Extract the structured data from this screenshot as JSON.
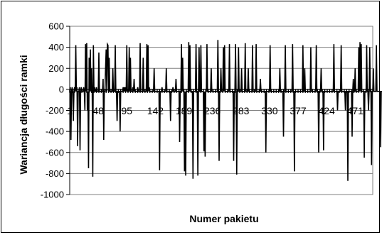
{
  "chart_data": {
    "type": "line",
    "title": "",
    "xlabel": "Numer pakietu",
    "ylabel": "Wariancja długości ramki",
    "ylim": [
      -1000,
      600
    ],
    "y_ticks": [
      600,
      400,
      200,
      0,
      -200,
      -400,
      -600,
      -800,
      -1000
    ],
    "y_tick_labels": [
      "600",
      "400",
      "200",
      "0",
      "-200",
      "-400",
      "-600",
      "-800",
      "-1000"
    ],
    "x_range": [
      1,
      500
    ],
    "x_ticks": [
      1,
      48,
      95,
      142,
      189,
      236,
      283,
      330,
      377,
      424,
      471
    ],
    "x_tick_labels": [
      "1",
      "48",
      "95",
      "142",
      "189",
      "236",
      "283",
      "330",
      "377",
      "424",
      "471"
    ],
    "grid": "horizontal",
    "legend": "none",
    "line_color": "#000000",
    "series": [
      {
        "x_start": 1,
        "x_step": 1,
        "values": [
          -20,
          20,
          -480,
          -20,
          20,
          -20,
          -300,
          -20,
          20,
          -20,
          420,
          -20,
          20,
          -540,
          -20,
          -20,
          20,
          -580,
          -20,
          20,
          -20,
          -20,
          -20,
          20,
          -20,
          -200,
          430,
          -20,
          440,
          -200,
          -20,
          -750,
          300,
          -20,
          380,
          -20,
          200,
          -20,
          -830,
          420,
          -20,
          20,
          -20,
          -20,
          20,
          -20,
          -20,
          -20,
          350,
          -20,
          -20,
          -20,
          -20,
          -20,
          -20,
          100,
          -480,
          -20,
          -20,
          200,
          380,
          -20,
          430,
          420,
          -20,
          300,
          -20,
          -20,
          -20,
          -20,
          -20,
          200,
          -20,
          -20,
          -20,
          420,
          -20,
          -20,
          -300,
          -20,
          -20,
          -20,
          -20,
          -400,
          -20,
          -20,
          -20,
          -20,
          20,
          -20,
          20,
          -20,
          20,
          -20,
          420,
          -20,
          -20,
          -20,
          400,
          -20,
          300,
          -20,
          -20,
          -20,
          20,
          -20,
          100,
          -20,
          -20,
          -20,
          -20,
          -20,
          20,
          -20,
          -20,
          -20,
          440,
          -20,
          -20,
          -20,
          -20,
          300,
          -20,
          -20,
          -20,
          -20,
          -20,
          430,
          -20,
          420,
          -20,
          20,
          -20,
          -20,
          -20,
          -20,
          -20,
          -20,
          -20,
          200,
          -20,
          -20,
          -20,
          -20,
          -20,
          -20,
          -20,
          -20,
          -770,
          -20,
          -20,
          -20,
          20,
          -20,
          -20,
          -20,
          -20,
          -20,
          -20,
          200,
          -20,
          -20,
          -20,
          -20,
          -20,
          -20,
          -300,
          -20,
          -20,
          -20,
          20,
          -20,
          -20,
          -20,
          -20,
          100,
          -20,
          -20,
          -20,
          -20,
          -20,
          -500,
          -20,
          -20,
          430,
          -20,
          300,
          -20,
          -20,
          -780,
          -20,
          -820,
          -20,
          -20,
          -20,
          -20,
          450,
          -20,
          420,
          -20,
          -20,
          -20,
          -20,
          -850,
          -20,
          -20,
          -20,
          -20,
          430,
          -20,
          -20,
          -820,
          -20,
          400,
          -20,
          -20,
          420,
          -20,
          -20,
          -20,
          -20,
          -590,
          -20,
          -640,
          -20,
          -20,
          430,
          -20,
          -20,
          -20,
          -20,
          -20,
          -20,
          200,
          -20,
          -20,
          -20,
          -20,
          -20,
          -20,
          -20,
          -20,
          -20,
          -20,
          470,
          -20,
          -680,
          -20,
          -20,
          200,
          -20,
          -20,
          -20,
          400,
          -20,
          420,
          -20,
          -20,
          -20,
          -20,
          -20,
          -20,
          -20,
          430,
          -20,
          -20,
          -20,
          -20,
          -20,
          -20,
          -680,
          -20,
          -20,
          430,
          -20,
          -810,
          -20,
          -20,
          400,
          -20,
          -20,
          -20,
          -20,
          200,
          -20,
          -20,
          -20,
          -20,
          -20,
          440,
          -20,
          -20,
          -20,
          -20,
          200,
          -20,
          -20,
          -20,
          -20,
          -20,
          -20,
          420,
          -20,
          -20,
          -20,
          -20,
          -20,
          430,
          -20,
          -20,
          -20,
          -20,
          -20,
          -20,
          100,
          -20,
          -20,
          -20,
          -20,
          -20,
          -20,
          -20,
          -20,
          -600,
          -20,
          -20,
          -20,
          -20,
          -20,
          -20,
          420,
          -20,
          -20,
          -20,
          -20,
          -20,
          -20,
          -20,
          -20,
          -20,
          -20,
          -20,
          -20,
          -20,
          -20,
          -20,
          200,
          -20,
          -20,
          -20,
          -20,
          -20,
          -450,
          -20,
          -20,
          420,
          -20,
          -20,
          -20,
          -20,
          -20,
          -20,
          -20,
          -20,
          -20,
          -20,
          -20,
          430,
          -20,
          -20,
          -780,
          -20,
          -20,
          -20,
          -20,
          -20,
          -20,
          -20,
          -20,
          -20,
          -20,
          -20,
          -20,
          -20,
          420,
          -20,
          -20,
          200,
          -20,
          -20,
          -20,
          -20,
          -20,
          -20,
          -20,
          -20,
          -20,
          400,
          -20,
          -20,
          -20,
          -20,
          -20,
          -20,
          -20,
          -20,
          420,
          -20,
          -20,
          -20,
          -600,
          -20,
          -20,
          -20,
          200,
          -20,
          -20,
          -20,
          -580,
          -20,
          -20,
          -20,
          -20,
          -20,
          -20,
          -20,
          -20,
          -20,
          -20,
          -20,
          -20,
          -20,
          -20,
          -20,
          -20,
          430,
          -20,
          -20,
          -20,
          -20,
          -20,
          -200,
          -20,
          -20,
          -20,
          -20,
          -20,
          420,
          -20,
          -20,
          -20,
          -20,
          -20,
          -20,
          -200,
          -20,
          -20,
          -20,
          -870,
          -20,
          -20,
          -20,
          -20,
          -20,
          -20,
          -450,
          -20,
          100,
          -20,
          -20,
          200,
          -20,
          -20,
          -20,
          -20,
          -20,
          400,
          -20,
          450,
          -20,
          430,
          -20,
          -20,
          -20,
          -20,
          -650,
          -20,
          -20,
          -20,
          420,
          -20,
          -20,
          -200,
          -20,
          400,
          -20,
          -20,
          -720,
          -20,
          -20,
          200,
          -20,
          -20,
          -20,
          -20,
          420,
          -20,
          -20,
          -20,
          -20,
          -20,
          -20,
          -550,
          -20,
          -20,
          -20,
          -20,
          200,
          -20,
          -20,
          400,
          -20,
          -20,
          -20,
          -20,
          -20,
          -20,
          -20
        ]
      }
    ]
  }
}
